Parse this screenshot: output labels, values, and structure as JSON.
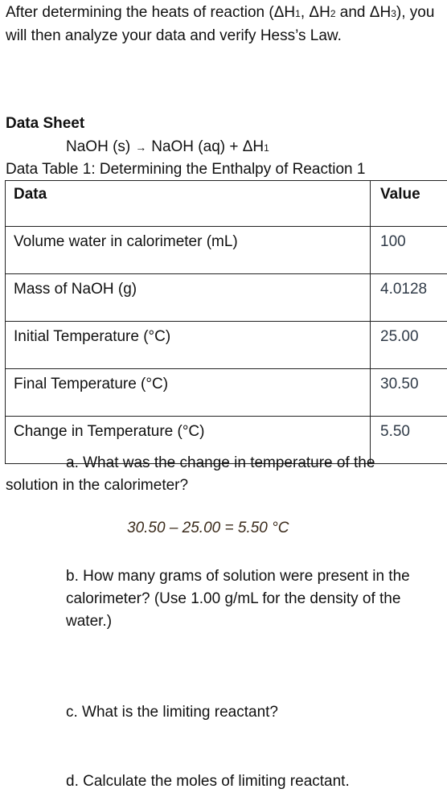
{
  "intro": {
    "part1": "After determining the heats of reaction (ΔH",
    "sub1": "1",
    "part2": ", ΔH",
    "sub2": "2",
    "part3": " and ΔH",
    "sub3": "3",
    "part4": "), you will then analyze your data and verify Hess’s Law."
  },
  "section_title": "Data Sheet",
  "equation": {
    "left": "NaOH (s)",
    "arrow": "→",
    "right": "NaOH (aq) + ΔH",
    "sub": "1"
  },
  "table_caption": "Data Table 1:  Determining the Enthalpy of Reaction 1",
  "table": {
    "headers": [
      "Data",
      "Value"
    ],
    "rows": [
      {
        "label": "Volume water in calorimeter (mL)",
        "value": "100"
      },
      {
        "label": "Mass of NaOH (g)",
        "value": "4.0128"
      },
      {
        "label": "Initial Temperature (°C)",
        "value": "25.00"
      },
      {
        "label": "Final Temperature (°C)",
        "value": "30.50"
      },
      {
        "label": "Change in Temperature (°C)",
        "value": "5.50"
      }
    ]
  },
  "questions": {
    "a_line1": "a. What was the change in temperature of the",
    "a_line2": "solution in the calorimeter?",
    "a_answer": "30.50 – 25.00 = 5.50 °C",
    "b": "b. How many grams of solution were present in the calorimeter? (Use 1.00 g/mL for the density of the water.)",
    "c": "c. What is the limiting reactant?",
    "d": "d. Calculate the moles of limiting reactant."
  }
}
